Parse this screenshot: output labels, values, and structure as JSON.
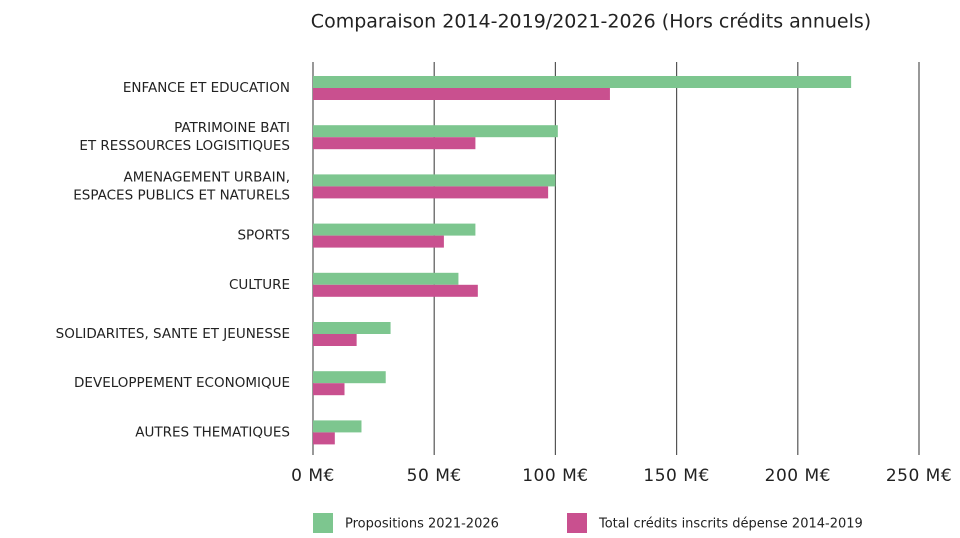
{
  "chart_data": {
    "type": "barh",
    "title": "Comparaison 2014-2019/2021-2026 (Hors crédits annuels)",
    "categories": [
      [
        "ENFANCE ET EDUCATION"
      ],
      [
        "PATRIMOINE BATI",
        "ET RESSOURCES LOGISITIQUES"
      ],
      [
        "AMENAGEMENT URBAIN,",
        "ESPACES PUBLICS ET NATURELS"
      ],
      [
        "SPORTS"
      ],
      [
        "CULTURE"
      ],
      [
        "SOLIDARITES, SANTE ET JEUNESSE"
      ],
      [
        "DEVELOPPEMENT ECONOMIQUE"
      ],
      [
        "AUTRES THEMATIQUES"
      ]
    ],
    "series": [
      {
        "name": "Propositions 2021-2026",
        "color": "#7dc68f",
        "values": [
          222,
          101,
          100,
          67,
          60,
          32,
          30,
          20
        ]
      },
      {
        "name": "Total crédits inscrits dépense 2014-2019",
        "color": "#c9508f",
        "values": [
          122.5,
          67,
          97,
          54,
          68,
          18,
          13,
          9
        ]
      }
    ],
    "xlim": [
      0,
      250
    ],
    "xticks": [
      {
        "value": 0,
        "label": "0 M€"
      },
      {
        "value": 50,
        "label": "50 M€"
      },
      {
        "value": 100,
        "label": "100 M€"
      },
      {
        "value": 150,
        "label": "150 M€"
      },
      {
        "value": 200,
        "label": "200 M€"
      },
      {
        "value": 250,
        "label": "250 M€"
      }
    ],
    "grid": true
  }
}
